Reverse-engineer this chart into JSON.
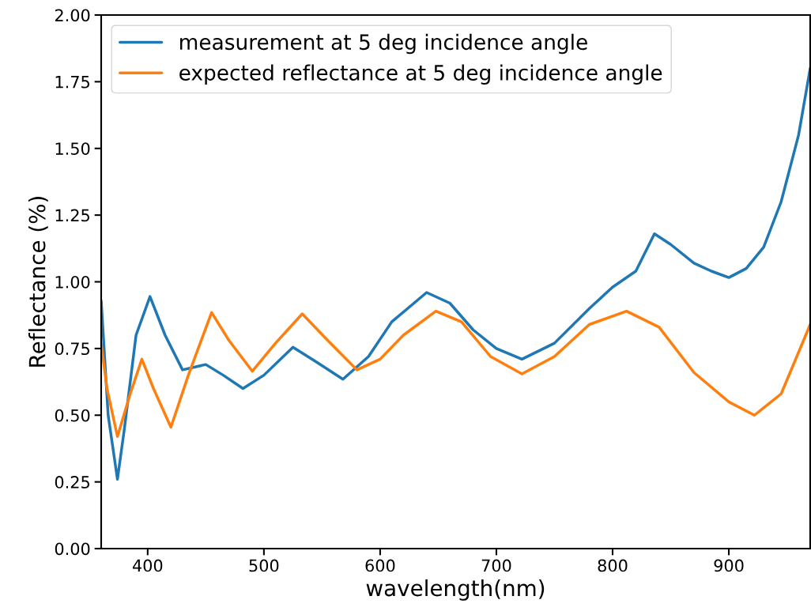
{
  "chart_data": {
    "type": "line",
    "xlabel": "wavelength(nm)",
    "ylabel": "Reflectance (%)",
    "xlim": [
      360,
      970
    ],
    "xticks": [
      400,
      500,
      600,
      700,
      800,
      900
    ],
    "ylim": [
      0,
      2
    ],
    "yticks": [
      {
        "value": 0,
        "label": "0.00"
      },
      {
        "value": 0.25,
        "label": "0.25"
      },
      {
        "value": 0.5,
        "label": "0.50"
      },
      {
        "value": 0.75,
        "label": "0.75"
      },
      {
        "value": 1,
        "label": "1.00"
      },
      {
        "value": 1.25,
        "label": "1.25"
      },
      {
        "value": 1.5,
        "label": "1.50"
      },
      {
        "value": 1.75,
        "label": "1.75"
      },
      {
        "value": 2,
        "label": "2.00"
      }
    ],
    "grid": false,
    "legend": "top left",
    "series": [
      {
        "name": "measurement at 5 deg incidence angle",
        "color": "#1f77b4",
        "x": [
          360,
          366,
          374,
          380,
          390,
          402,
          415,
          430,
          450,
          465,
          482,
          500,
          525,
          545,
          568,
          590,
          610,
          640,
          660,
          680,
          700,
          722,
          750,
          780,
          800,
          820,
          836,
          850,
          870,
          885,
          900,
          915,
          930,
          945,
          960,
          970
        ],
        "values": [
          0.93,
          0.5,
          0.26,
          0.45,
          0.8,
          0.945,
          0.8,
          0.67,
          0.69,
          0.65,
          0.6,
          0.65,
          0.755,
          0.7,
          0.635,
          0.72,
          0.85,
          0.96,
          0.92,
          0.82,
          0.75,
          0.71,
          0.77,
          0.9,
          0.98,
          1.04,
          1.18,
          1.14,
          1.07,
          1.04,
          1.016,
          1.05,
          1.13,
          1.3,
          1.55,
          1.8
        ]
      },
      {
        "name": "expected reflectance at 5 deg incidence angle",
        "color": "#ff7f0e",
        "x": [
          360,
          365,
          374,
          385,
          395,
          405,
          420,
          435,
          455,
          470,
          490,
          510,
          533,
          555,
          580,
          600,
          620,
          648,
          670,
          695,
          722,
          750,
          780,
          812,
          840,
          870,
          900,
          922,
          945,
          970
        ],
        "values": [
          0.77,
          0.6,
          0.42,
          0.58,
          0.71,
          0.6,
          0.455,
          0.65,
          0.885,
          0.78,
          0.665,
          0.77,
          0.88,
          0.78,
          0.67,
          0.71,
          0.8,
          0.89,
          0.85,
          0.72,
          0.655,
          0.72,
          0.84,
          0.89,
          0.83,
          0.66,
          0.55,
          0.5,
          0.58,
          0.84
        ]
      }
    ]
  }
}
